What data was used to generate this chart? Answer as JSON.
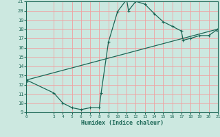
{
  "xlabel": "Humidex (Indice chaleur)",
  "bg_color": "#cce8e0",
  "grid_color": "#f0a0a0",
  "line_color": "#1a6655",
  "xlim": [
    0,
    21
  ],
  "ylim": [
    9,
    21
  ],
  "xticks": [
    0,
    3,
    4,
    5,
    6,
    7,
    8,
    9,
    10,
    11,
    12,
    13,
    14,
    15,
    16,
    17,
    18,
    19,
    20,
    21
  ],
  "yticks": [
    9,
    10,
    11,
    12,
    13,
    14,
    15,
    16,
    17,
    18,
    19,
    20,
    21
  ],
  "curve1_x": [
    0,
    3,
    4,
    5,
    6,
    7,
    8,
    8.2,
    9,
    10,
    11,
    11.2,
    12,
    13,
    14,
    15,
    16,
    17,
    17.2,
    18,
    19,
    20,
    21
  ],
  "curve1_y": [
    12.5,
    11.1,
    10.0,
    9.5,
    9.3,
    9.5,
    9.5,
    11.1,
    16.6,
    19.9,
    21.2,
    20.0,
    21.0,
    20.7,
    19.7,
    18.8,
    18.3,
    17.8,
    16.8,
    17.0,
    17.3,
    17.3,
    18.0
  ],
  "curve2_x": [
    0,
    21
  ],
  "curve2_y": [
    12.5,
    18.0
  ]
}
